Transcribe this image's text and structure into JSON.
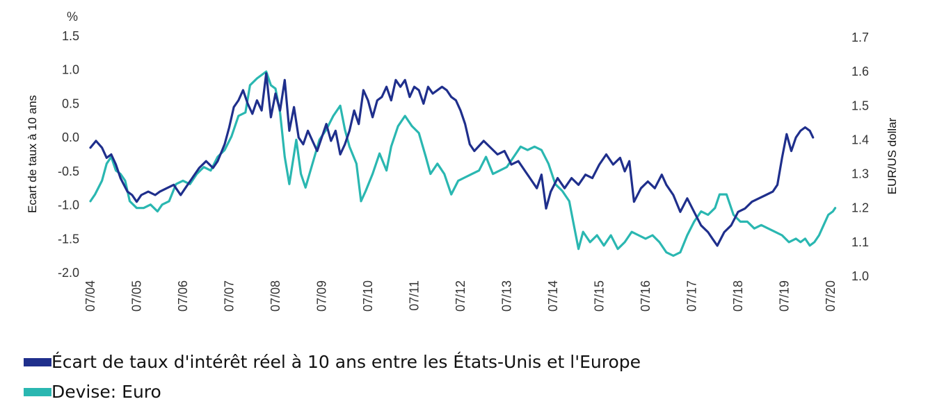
{
  "chart_data": {
    "type": "line",
    "left_axis": {
      "label": "Ecart de taux à 10 ans",
      "unit": "%",
      "ticks": [
        "1.5",
        "1.0",
        "0.5",
        "0.0",
        "-0.5",
        "-1.0",
        "-1.5",
        "-2.0"
      ],
      "range": [
        -2.0,
        1.5
      ]
    },
    "right_axis": {
      "label": "EUR/US dollar",
      "ticks": [
        "1.7",
        "1.6",
        "1.5",
        "1.4",
        "1.3",
        "1.2",
        "1.1",
        "1.0"
      ],
      "range": [
        1.0,
        1.7
      ]
    },
    "x_ticks": [
      "07/04",
      "07/05",
      "07/06",
      "07/07",
      "07/08",
      "07/09",
      "07/10",
      "07/11",
      "07/12",
      "07/13",
      "07/14",
      "07/15",
      "07/16",
      "07/17",
      "07/18",
      "07/19",
      "07/20"
    ],
    "x_range": [
      2004.5,
      2020.5
    ],
    "grid": false,
    "legend_position": "bottom-left",
    "series": [
      {
        "name": "Écart de taux d'intérêt réel à 10 ans entre les États-Unis et l'Europe",
        "axis": "left",
        "color": "#1f2f8c",
        "points": [
          [
            2004.5,
            -0.15
          ],
          [
            2004.62,
            -0.05
          ],
          [
            2004.75,
            -0.15
          ],
          [
            2004.85,
            -0.3
          ],
          [
            2004.95,
            -0.25
          ],
          [
            2005.05,
            -0.4
          ],
          [
            2005.15,
            -0.6
          ],
          [
            2005.3,
            -0.8
          ],
          [
            2005.4,
            -0.85
          ],
          [
            2005.5,
            -0.95
          ],
          [
            2005.6,
            -0.85
          ],
          [
            2005.75,
            -0.8
          ],
          [
            2005.9,
            -0.85
          ],
          [
            2006.0,
            -0.8
          ],
          [
            2006.15,
            -0.75
          ],
          [
            2006.3,
            -0.7
          ],
          [
            2006.45,
            -0.85
          ],
          [
            2006.55,
            -0.75
          ],
          [
            2006.7,
            -0.6
          ],
          [
            2006.85,
            -0.45
          ],
          [
            2007.0,
            -0.35
          ],
          [
            2007.15,
            -0.45
          ],
          [
            2007.25,
            -0.35
          ],
          [
            2007.4,
            -0.1
          ],
          [
            2007.5,
            0.15
          ],
          [
            2007.6,
            0.45
          ],
          [
            2007.7,
            0.55
          ],
          [
            2007.8,
            0.7
          ],
          [
            2007.9,
            0.5
          ],
          [
            2008.0,
            0.35
          ],
          [
            2008.1,
            0.55
          ],
          [
            2008.2,
            0.4
          ],
          [
            2008.3,
            0.95
          ],
          [
            2008.4,
            0.3
          ],
          [
            2008.5,
            0.65
          ],
          [
            2008.6,
            0.4
          ],
          [
            2008.7,
            0.85
          ],
          [
            2008.8,
            0.1
          ],
          [
            2008.9,
            0.45
          ],
          [
            2009.0,
            0.0
          ],
          [
            2009.1,
            -0.1
          ],
          [
            2009.2,
            0.1
          ],
          [
            2009.3,
            -0.05
          ],
          [
            2009.4,
            -0.2
          ],
          [
            2009.5,
            0.0
          ],
          [
            2009.6,
            0.2
          ],
          [
            2009.7,
            -0.05
          ],
          [
            2009.8,
            0.1
          ],
          [
            2009.9,
            -0.25
          ],
          [
            2010.0,
            -0.1
          ],
          [
            2010.1,
            0.1
          ],
          [
            2010.2,
            0.4
          ],
          [
            2010.3,
            0.2
          ],
          [
            2010.4,
            0.7
          ],
          [
            2010.5,
            0.55
          ],
          [
            2010.6,
            0.3
          ],
          [
            2010.7,
            0.55
          ],
          [
            2010.8,
            0.6
          ],
          [
            2010.9,
            0.75
          ],
          [
            2011.0,
            0.55
          ],
          [
            2011.1,
            0.85
          ],
          [
            2011.2,
            0.75
          ],
          [
            2011.3,
            0.85
          ],
          [
            2011.4,
            0.6
          ],
          [
            2011.5,
            0.75
          ],
          [
            2011.6,
            0.7
          ],
          [
            2011.7,
            0.5
          ],
          [
            2011.8,
            0.75
          ],
          [
            2011.9,
            0.65
          ],
          [
            2012.0,
            0.7
          ],
          [
            2012.1,
            0.75
          ],
          [
            2012.2,
            0.7
          ],
          [
            2012.3,
            0.6
          ],
          [
            2012.4,
            0.55
          ],
          [
            2012.5,
            0.4
          ],
          [
            2012.6,
            0.2
          ],
          [
            2012.7,
            -0.1
          ],
          [
            2012.8,
            -0.2
          ],
          [
            2013.0,
            -0.05
          ],
          [
            2013.15,
            -0.15
          ],
          [
            2013.3,
            -0.25
          ],
          [
            2013.45,
            -0.2
          ],
          [
            2013.6,
            -0.4
          ],
          [
            2013.75,
            -0.35
          ],
          [
            2013.9,
            -0.5
          ],
          [
            2014.0,
            -0.6
          ],
          [
            2014.15,
            -0.75
          ],
          [
            2014.25,
            -0.55
          ],
          [
            2014.35,
            -1.05
          ],
          [
            2014.45,
            -0.8
          ],
          [
            2014.6,
            -0.6
          ],
          [
            2014.75,
            -0.75
          ],
          [
            2014.9,
            -0.6
          ],
          [
            2015.05,
            -0.7
          ],
          [
            2015.2,
            -0.55
          ],
          [
            2015.35,
            -0.6
          ],
          [
            2015.5,
            -0.4
          ],
          [
            2015.65,
            -0.25
          ],
          [
            2015.8,
            -0.4
          ],
          [
            2015.95,
            -0.3
          ],
          [
            2016.05,
            -0.5
          ],
          [
            2016.15,
            -0.35
          ],
          [
            2016.25,
            -0.95
          ],
          [
            2016.4,
            -0.75
          ],
          [
            2016.55,
            -0.65
          ],
          [
            2016.7,
            -0.75
          ],
          [
            2016.85,
            -0.55
          ],
          [
            2016.95,
            -0.7
          ],
          [
            2017.1,
            -0.85
          ],
          [
            2017.25,
            -1.1
          ],
          [
            2017.4,
            -0.9
          ],
          [
            2017.55,
            -1.1
          ],
          [
            2017.7,
            -1.3
          ],
          [
            2017.85,
            -1.4
          ],
          [
            2017.95,
            -1.5
          ],
          [
            2018.05,
            -1.6
          ],
          [
            2018.2,
            -1.4
          ],
          [
            2018.35,
            -1.3
          ],
          [
            2018.5,
            -1.1
          ],
          [
            2018.65,
            -1.05
          ],
          [
            2018.8,
            -0.95
          ],
          [
            2018.95,
            -0.9
          ],
          [
            2019.1,
            -0.85
          ],
          [
            2019.25,
            -0.8
          ],
          [
            2019.35,
            -0.7
          ],
          [
            2019.45,
            -0.3
          ],
          [
            2019.55,
            0.05
          ],
          [
            2019.65,
            -0.2
          ],
          [
            2019.75,
            0.0
          ],
          [
            2019.85,
            0.1
          ],
          [
            2019.95,
            0.15
          ],
          [
            2020.05,
            0.1
          ],
          [
            2020.12,
            0.0
          ]
        ]
      },
      {
        "name": "Devise: Euro",
        "axis": "right",
        "color": "#2ab7b1",
        "points": [
          [
            2004.5,
            1.22
          ],
          [
            2004.6,
            1.24
          ],
          [
            2004.75,
            1.28
          ],
          [
            2004.85,
            1.33
          ],
          [
            2004.95,
            1.35
          ],
          [
            2005.05,
            1.31
          ],
          [
            2005.15,
            1.3
          ],
          [
            2005.25,
            1.28
          ],
          [
            2005.35,
            1.22
          ],
          [
            2005.5,
            1.2
          ],
          [
            2005.65,
            1.2
          ],
          [
            2005.8,
            1.21
          ],
          [
            2005.95,
            1.19
          ],
          [
            2006.05,
            1.21
          ],
          [
            2006.2,
            1.22
          ],
          [
            2006.35,
            1.27
          ],
          [
            2006.5,
            1.28
          ],
          [
            2006.65,
            1.27
          ],
          [
            2006.8,
            1.3
          ],
          [
            2006.95,
            1.32
          ],
          [
            2007.1,
            1.31
          ],
          [
            2007.25,
            1.35
          ],
          [
            2007.4,
            1.37
          ],
          [
            2007.55,
            1.41
          ],
          [
            2007.7,
            1.47
          ],
          [
            2007.85,
            1.48
          ],
          [
            2007.95,
            1.56
          ],
          [
            2008.1,
            1.58
          ],
          [
            2008.3,
            1.6
          ],
          [
            2008.4,
            1.56
          ],
          [
            2008.5,
            1.55
          ],
          [
            2008.6,
            1.48
          ],
          [
            2008.7,
            1.35
          ],
          [
            2008.8,
            1.27
          ],
          [
            2008.95,
            1.4
          ],
          [
            2009.05,
            1.3
          ],
          [
            2009.15,
            1.26
          ],
          [
            2009.3,
            1.33
          ],
          [
            2009.45,
            1.4
          ],
          [
            2009.6,
            1.43
          ],
          [
            2009.75,
            1.47
          ],
          [
            2009.9,
            1.5
          ],
          [
            2010.0,
            1.43
          ],
          [
            2010.1,
            1.38
          ],
          [
            2010.25,
            1.33
          ],
          [
            2010.35,
            1.22
          ],
          [
            2010.45,
            1.25
          ],
          [
            2010.6,
            1.3
          ],
          [
            2010.75,
            1.36
          ],
          [
            2010.9,
            1.31
          ],
          [
            2011.0,
            1.38
          ],
          [
            2011.15,
            1.44
          ],
          [
            2011.3,
            1.47
          ],
          [
            2011.45,
            1.44
          ],
          [
            2011.6,
            1.42
          ],
          [
            2011.75,
            1.35
          ],
          [
            2011.85,
            1.3
          ],
          [
            2012.0,
            1.33
          ],
          [
            2012.15,
            1.3
          ],
          [
            2012.3,
            1.24
          ],
          [
            2012.45,
            1.28
          ],
          [
            2012.6,
            1.29
          ],
          [
            2012.75,
            1.3
          ],
          [
            2012.9,
            1.31
          ],
          [
            2013.05,
            1.35
          ],
          [
            2013.2,
            1.3
          ],
          [
            2013.35,
            1.31
          ],
          [
            2013.5,
            1.32
          ],
          [
            2013.65,
            1.35
          ],
          [
            2013.8,
            1.38
          ],
          [
            2013.95,
            1.37
          ],
          [
            2014.1,
            1.38
          ],
          [
            2014.25,
            1.37
          ],
          [
            2014.4,
            1.33
          ],
          [
            2014.55,
            1.27
          ],
          [
            2014.7,
            1.25
          ],
          [
            2014.85,
            1.22
          ],
          [
            2014.95,
            1.15
          ],
          [
            2015.05,
            1.08
          ],
          [
            2015.15,
            1.13
          ],
          [
            2015.3,
            1.1
          ],
          [
            2015.45,
            1.12
          ],
          [
            2015.6,
            1.09
          ],
          [
            2015.75,
            1.12
          ],
          [
            2015.9,
            1.08
          ],
          [
            2016.05,
            1.1
          ],
          [
            2016.2,
            1.13
          ],
          [
            2016.35,
            1.12
          ],
          [
            2016.5,
            1.11
          ],
          [
            2016.65,
            1.12
          ],
          [
            2016.8,
            1.1
          ],
          [
            2016.95,
            1.07
          ],
          [
            2017.1,
            1.06
          ],
          [
            2017.25,
            1.07
          ],
          [
            2017.4,
            1.12
          ],
          [
            2017.55,
            1.16
          ],
          [
            2017.7,
            1.19
          ],
          [
            2017.85,
            1.18
          ],
          [
            2018.0,
            1.2
          ],
          [
            2018.1,
            1.24
          ],
          [
            2018.25,
            1.24
          ],
          [
            2018.4,
            1.18
          ],
          [
            2018.55,
            1.16
          ],
          [
            2018.7,
            1.16
          ],
          [
            2018.85,
            1.14
          ],
          [
            2019.0,
            1.15
          ],
          [
            2019.15,
            1.14
          ],
          [
            2019.3,
            1.13
          ],
          [
            2019.45,
            1.12
          ],
          [
            2019.6,
            1.1
          ],
          [
            2019.75,
            1.11
          ],
          [
            2019.85,
            1.1
          ],
          [
            2019.95,
            1.11
          ],
          [
            2020.05,
            1.09
          ],
          [
            2020.15,
            1.1
          ],
          [
            2020.25,
            1.12
          ],
          [
            2020.35,
            1.15
          ],
          [
            2020.45,
            1.18
          ],
          [
            2020.55,
            1.19
          ],
          [
            2020.6,
            1.2
          ]
        ]
      }
    ]
  }
}
